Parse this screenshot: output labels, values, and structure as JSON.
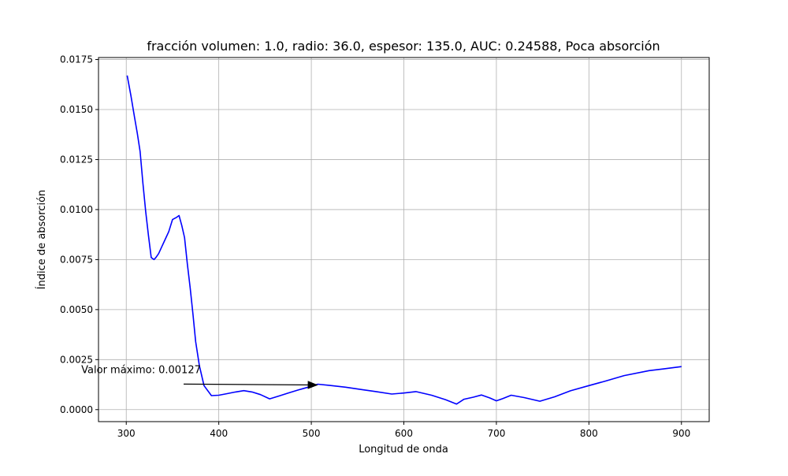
{
  "chart_data": {
    "type": "line",
    "title": "fracción volumen: 1.0, radio: 36.0, espesor: 135.0, AUC: 0.24588, Poca absorción",
    "xlabel": "Longitud de onda",
    "ylabel": "Índice de absorción",
    "xlim": [
      270,
      930
    ],
    "ylim": [
      -0.0006,
      0.0176
    ],
    "xticks": [
      300,
      400,
      500,
      600,
      700,
      800,
      900
    ],
    "yticks": [
      0.0,
      0.0025,
      0.005,
      0.0075,
      0.01,
      0.0125,
      0.015,
      0.0175
    ],
    "grid": true,
    "series": [
      {
        "color": "#0000ff",
        "x": [
          301,
          305,
          309,
          312,
          315,
          318,
          321,
          324,
          327,
          330,
          332,
          335,
          338,
          342,
          346,
          350,
          354,
          357,
          360,
          363,
          366,
          369,
          372,
          375,
          379,
          384,
          392,
          400,
          409,
          418,
          427,
          436,
          445,
          455,
          465,
          475,
          485,
          495,
          507,
          520,
          537,
          555,
          570,
          587,
          600,
          613,
          630,
          645,
          657,
          665,
          675,
          684,
          693,
          700,
          707,
          716,
          730,
          747,
          763,
          780,
          800,
          818,
          838,
          865,
          880,
          900
        ],
        "y": [
          0.0167,
          0.0157,
          0.0146,
          0.0138,
          0.0129,
          0.0113,
          0.0099,
          0.0087,
          0.0076,
          0.0075,
          0.0076,
          0.0078,
          0.0081,
          0.0085,
          0.0089,
          0.0095,
          0.0096,
          0.0097,
          0.0092,
          0.0086,
          0.0073,
          0.0061,
          0.0048,
          0.0034,
          0.0022,
          0.0012,
          0.0007,
          0.00072,
          0.0008,
          0.00088,
          0.00095,
          0.00088,
          0.00075,
          0.00054,
          0.00068,
          0.00083,
          0.00097,
          0.0011,
          0.00127,
          0.00121,
          0.00112,
          0.001,
          0.0009,
          0.00078,
          0.00083,
          0.0009,
          0.00072,
          0.0005,
          0.00028,
          0.00052,
          0.00062,
          0.00073,
          0.00058,
          0.00044,
          0.00055,
          0.00072,
          0.0006,
          0.00042,
          0.00064,
          0.00094,
          0.0012,
          0.00143,
          0.0017,
          0.00195,
          0.00203,
          0.00215
        ]
      }
    ],
    "annotations": [
      {
        "text": "Valor máximo: 0.00127",
        "point": [
          507,
          0.00127
        ],
        "text_at": [
          362,
          0.00175
        ]
      }
    ]
  }
}
